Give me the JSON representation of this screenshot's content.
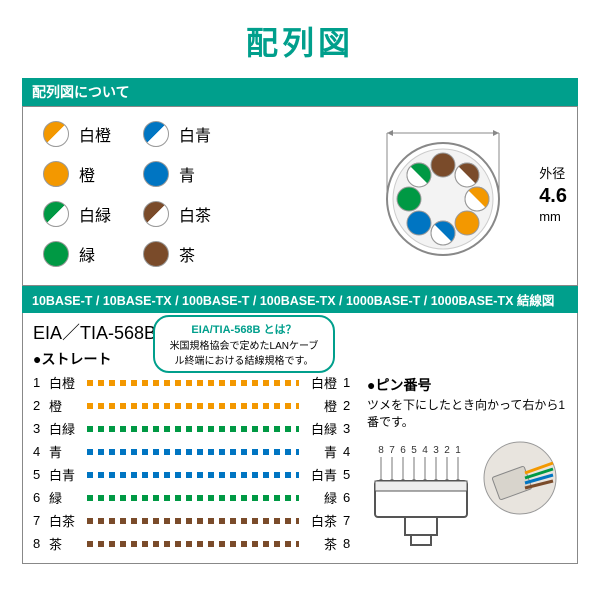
{
  "colors": {
    "teal": "#009f8c",
    "orange": "#f39800",
    "green": "#009944",
    "blue": "#0075c2",
    "brown": "#7a4b2a",
    "white": "#ffffff",
    "border": "#888888",
    "grey": "#999999",
    "lightgrey": "#cccccc"
  },
  "title": "配列図",
  "legend": {
    "heading": "配列図について",
    "items_col1": [
      {
        "label": "白橙",
        "half": true,
        "color": "#f39800"
      },
      {
        "label": "橙",
        "half": false,
        "color": "#f39800"
      },
      {
        "label": "白緑",
        "half": true,
        "color": "#009944"
      },
      {
        "label": "緑",
        "half": false,
        "color": "#009944"
      }
    ],
    "items_col2": [
      {
        "label": "白青",
        "half": true,
        "color": "#0075c2"
      },
      {
        "label": "青",
        "half": false,
        "color": "#0075c2"
      },
      {
        "label": "白茶",
        "half": true,
        "color": "#7a4b2a"
      },
      {
        "label": "茶",
        "half": false,
        "color": "#7a4b2a"
      }
    ],
    "diameter_label1": "外径",
    "diameter_value": "4.6",
    "diameter_unit": "mm"
  },
  "wiring": {
    "band": "10BASE-T / 10BASE-TX / 100BASE-T / 100BASE-TX / 1000BASE-T / 1000BASE-TX 結線図",
    "standard": "EIA／TIA-568B",
    "straight_label": "●ストレート",
    "note_title": "EIA/TIA-568B とは？",
    "note_body": "米国規格協会で定めたLANケーブル終端における結線規格です。",
    "rows": [
      {
        "n": "1",
        "lbl": "白橙",
        "color": "#f39800",
        "rn": "1",
        "rlbl": "白橙"
      },
      {
        "n": "2",
        "lbl": "橙",
        "color": "#f39800",
        "rn": "2",
        "rlbl": "橙"
      },
      {
        "n": "3",
        "lbl": "白緑",
        "color": "#009944",
        "rn": "3",
        "rlbl": "白緑"
      },
      {
        "n": "4",
        "lbl": "青",
        "color": "#0075c2",
        "rn": "4",
        "rlbl": "青"
      },
      {
        "n": "5",
        "lbl": "白青",
        "color": "#0075c2",
        "rn": "5",
        "rlbl": "白青"
      },
      {
        "n": "6",
        "lbl": "緑",
        "color": "#009944",
        "rn": "6",
        "rlbl": "緑"
      },
      {
        "n": "7",
        "lbl": "白茶",
        "color": "#7a4b2a",
        "rn": "7",
        "rlbl": "白茶"
      },
      {
        "n": "8",
        "lbl": "茶",
        "color": "#7a4b2a",
        "rn": "8",
        "rlbl": "茶"
      }
    ],
    "pin_number_label": "●ピン番号",
    "pin_number_desc": "ツメを下にしたとき向かって右から1番です。",
    "pin_numbers": "87654321"
  },
  "cross_section": {
    "ring_outer": 120,
    "ring_color": "#888888",
    "dots": [
      {
        "color": "#7a4b2a",
        "half": false
      },
      {
        "color": "#7a4b2a",
        "half": true
      },
      {
        "color": "#f39800",
        "half": true
      },
      {
        "color": "#f39800",
        "half": false
      },
      {
        "color": "#0075c2",
        "half": true
      },
      {
        "color": "#0075c2",
        "half": false
      },
      {
        "color": "#009944",
        "half": false
      },
      {
        "color": "#009944",
        "half": true
      }
    ]
  }
}
